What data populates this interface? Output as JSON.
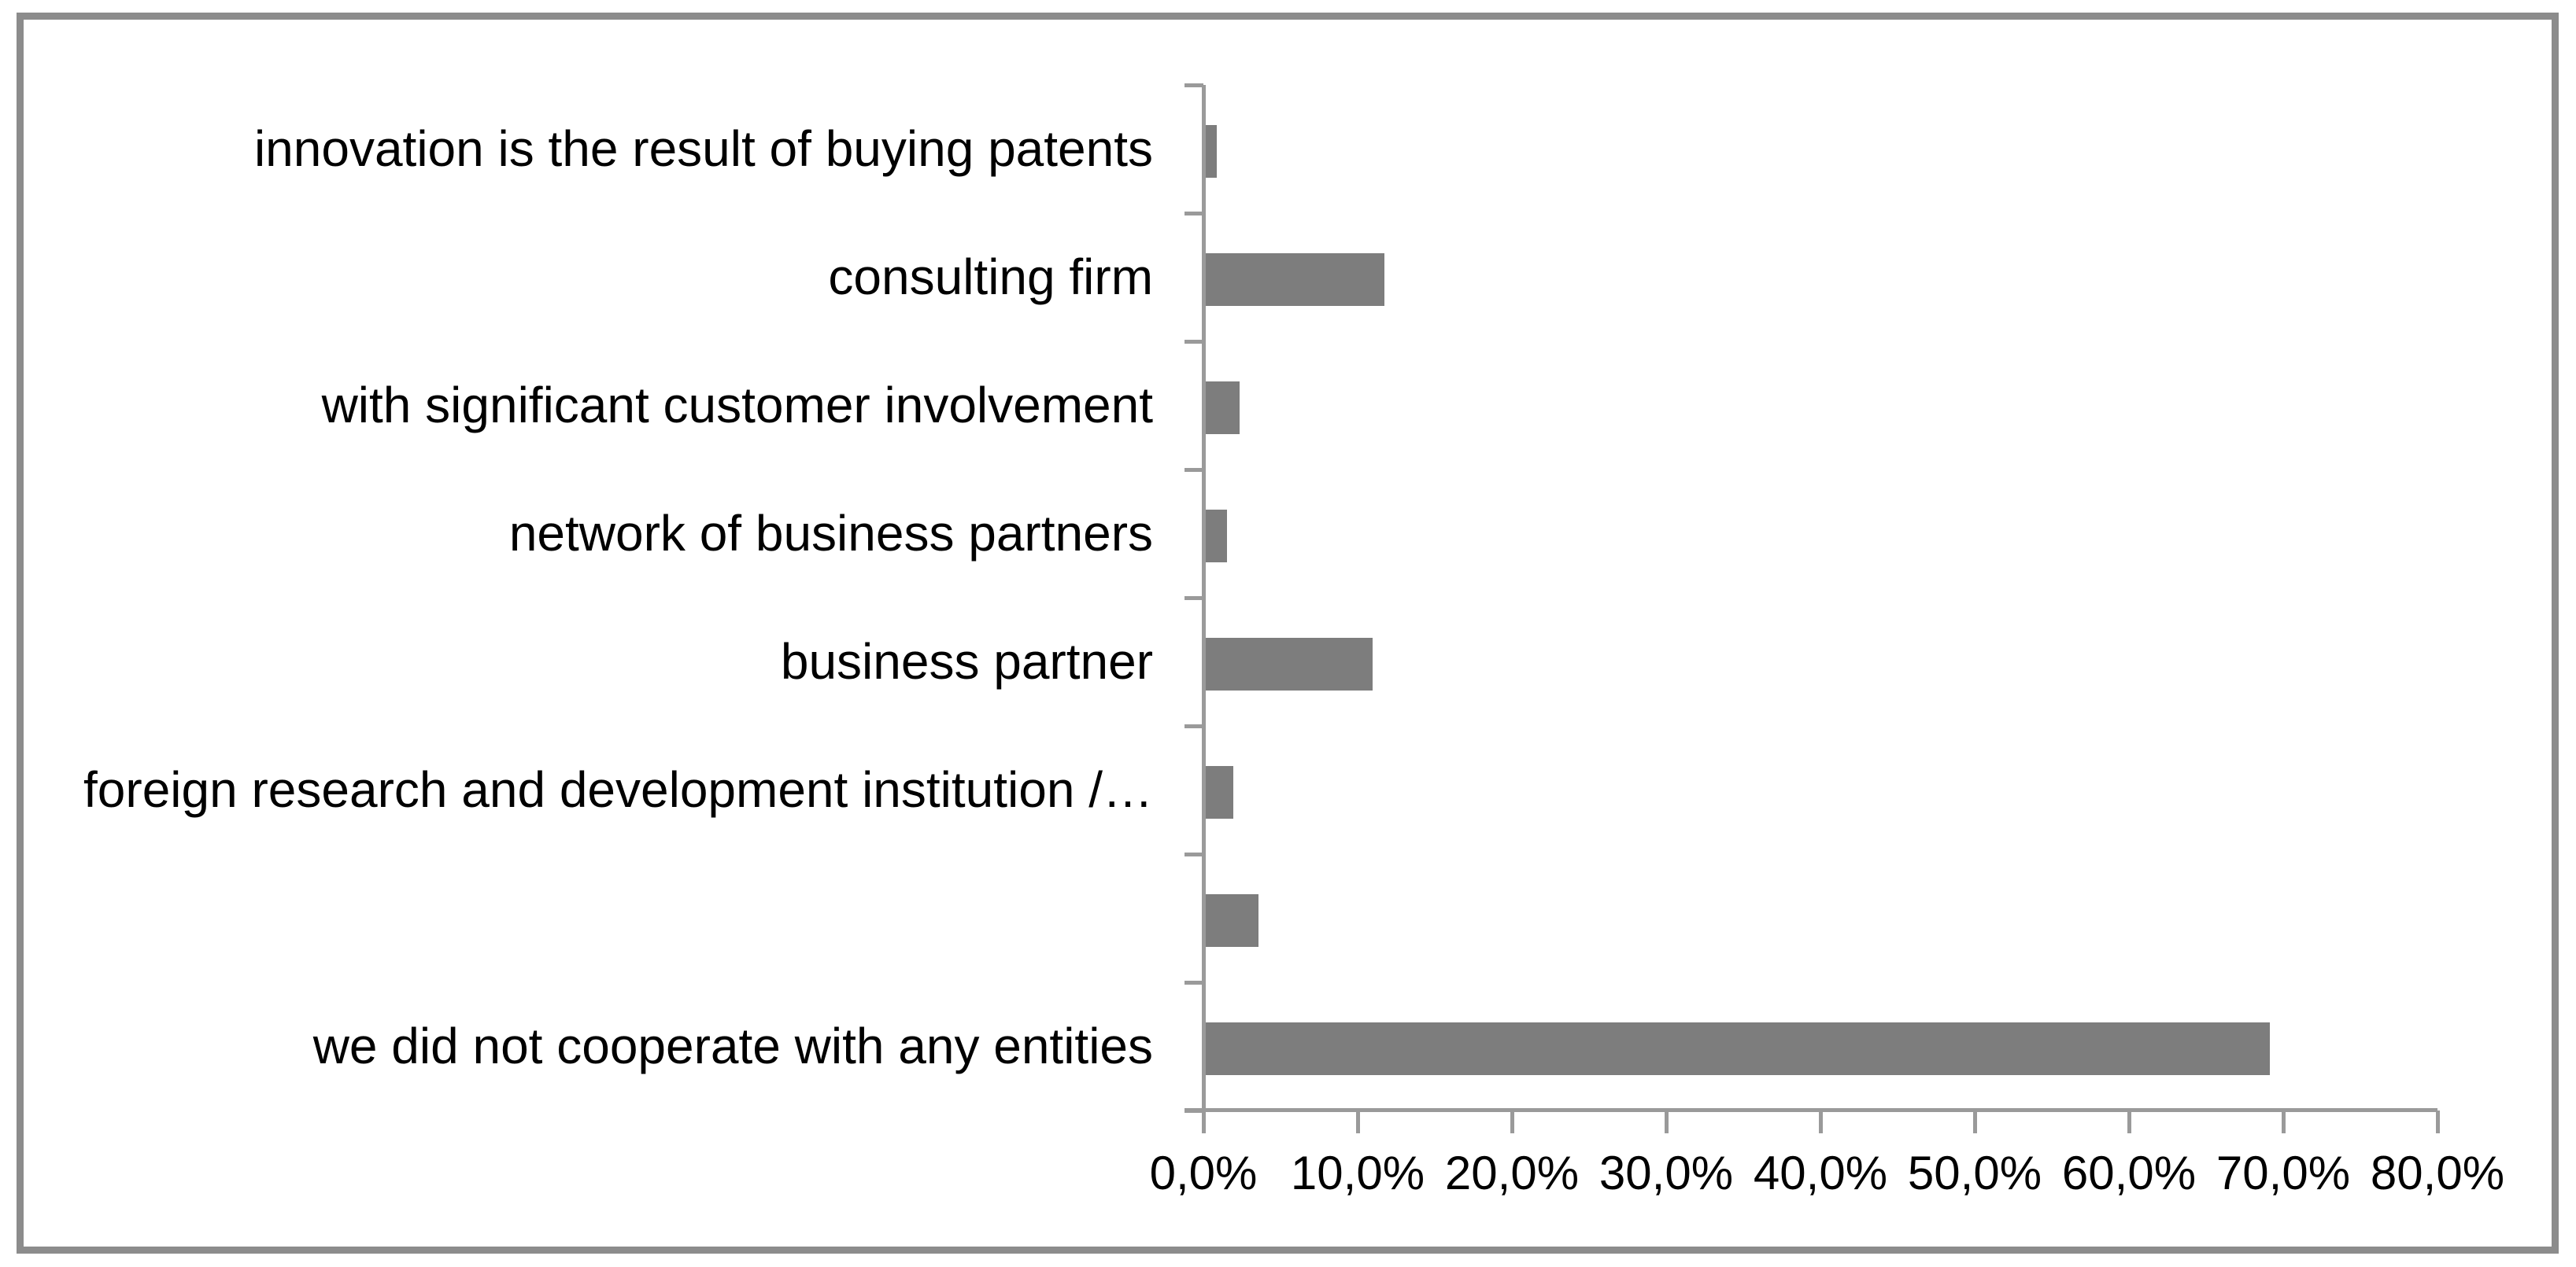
{
  "chart_data": {
    "type": "bar",
    "orientation": "horizontal",
    "title": "",
    "xlabel": "",
    "ylabel": "",
    "categories": [
      "innovation is the result of buying patents",
      "consulting firm",
      "with significant customer involvement",
      "network of business partners",
      "business partner",
      "foreign research and development institution /…",
      "",
      "we did not cooperate with any entities"
    ],
    "values": [
      0.7,
      11.6,
      2.2,
      1.4,
      10.8,
      1.8,
      3.4,
      69.0
    ],
    "unit": "%",
    "xlim": [
      0,
      80
    ],
    "x_tick_step": 10,
    "x_tick_labels": [
      "0,0%",
      "10,0%",
      "20,0%",
      "30,0%",
      "40,0%",
      "50,0%",
      "60,0%",
      "70,0%",
      "80,0%"
    ],
    "grid": false,
    "legend": false,
    "colors": {
      "bar": "#7d7d7d",
      "axis": "#9a9a9a",
      "frame": "#8c8c8c",
      "text": "#000000",
      "background": "#ffffff"
    }
  }
}
